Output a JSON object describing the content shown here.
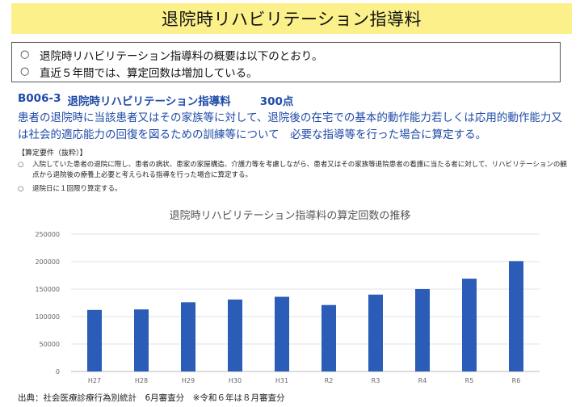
{
  "header": {
    "title": "退院時リハビリテーション指導料"
  },
  "summary": {
    "bullet": "○",
    "lines": [
      "退院時リハビリテーション指導料の概要は以下のとおり。",
      "直近５年間では、算定回数は増加している。"
    ]
  },
  "fee": {
    "code": "B006-3",
    "name": "退院時リハビリテーション指導料",
    "points": "300点"
  },
  "description": "患者の退院時に当該患者又はその家族等に対して、退院後の在宅での基本的動作能力若しくは応用的動作能力又は社会的適応能力の回復を図るための訓練等について　必要な指導等を行った場合に算定する。",
  "requirements": {
    "heading": "【算定要件（抜粋）】",
    "bullet": "○",
    "items": [
      "入院していた患者の退院に際し、患者の病状、患家の家屋構造、介護力等を考慮しながら、患者又はその家族等退院患者の看護に当たる者に対して、リハビリテーションの観点から退院後の療養上必要と考えられる指導を行った場合に算定する。",
      "退院日に１回限り算定する。"
    ]
  },
  "chart_data": {
    "type": "bar",
    "title": "退院時リハビリテーション指導料の算定回数の推移",
    "categories": [
      "H27",
      "H28",
      "H29",
      "H30",
      "H31",
      "R2",
      "R3",
      "R4",
      "R5",
      "R6"
    ],
    "values": [
      112000,
      113000,
      126000,
      131000,
      136000,
      121000,
      140000,
      150000,
      169000,
      201000
    ],
    "ylim": [
      0,
      250000
    ],
    "yticks": [
      "0",
      "50000",
      "100000",
      "150000",
      "200000",
      "250000"
    ],
    "grid": true,
    "bar_color": "#2a5cb8"
  },
  "footer": {
    "source": "出典：社会医療診療行為別統計　6月審査分　※令和６年は８月審査分"
  }
}
